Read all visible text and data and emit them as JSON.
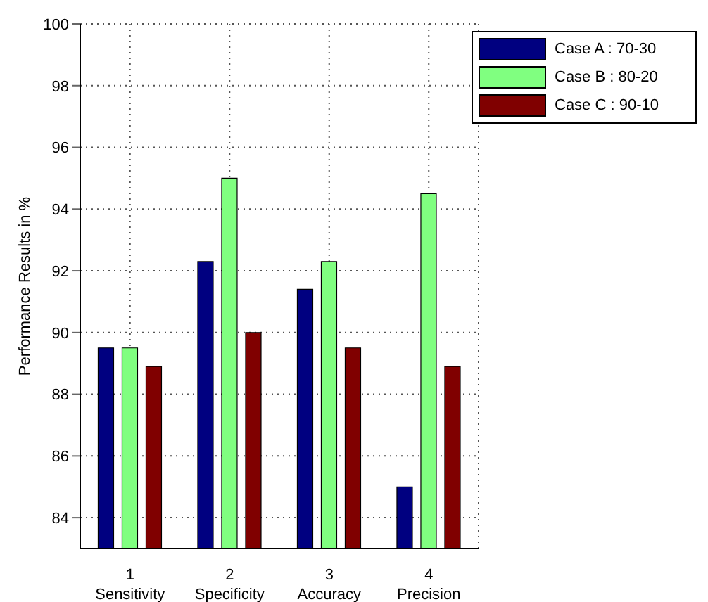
{
  "chart_data": {
    "type": "bar",
    "ylabel": "Performance Results in %",
    "categories": [
      "1\nSensitivity",
      "2\nSpecificity",
      "3\nAccuracy",
      "4\nPrecision"
    ],
    "series": [
      {
        "name": "Case A : 70-30",
        "color": "#000080",
        "values": [
          89.5,
          92.3,
          91.4,
          85
        ]
      },
      {
        "name": "Case B : 80-20",
        "color": "#80ff80",
        "values": [
          89.5,
          95,
          92.3,
          94.5
        ]
      },
      {
        "name": "Case C : 90-10",
        "color": "#800000",
        "values": [
          88.9,
          90,
          89.5,
          88.9
        ]
      }
    ],
    "ylim": [
      83,
      100
    ],
    "yticks": [
      84,
      86,
      88,
      90,
      92,
      94,
      96,
      98,
      100
    ],
    "grid": true,
    "legend": "top right"
  }
}
